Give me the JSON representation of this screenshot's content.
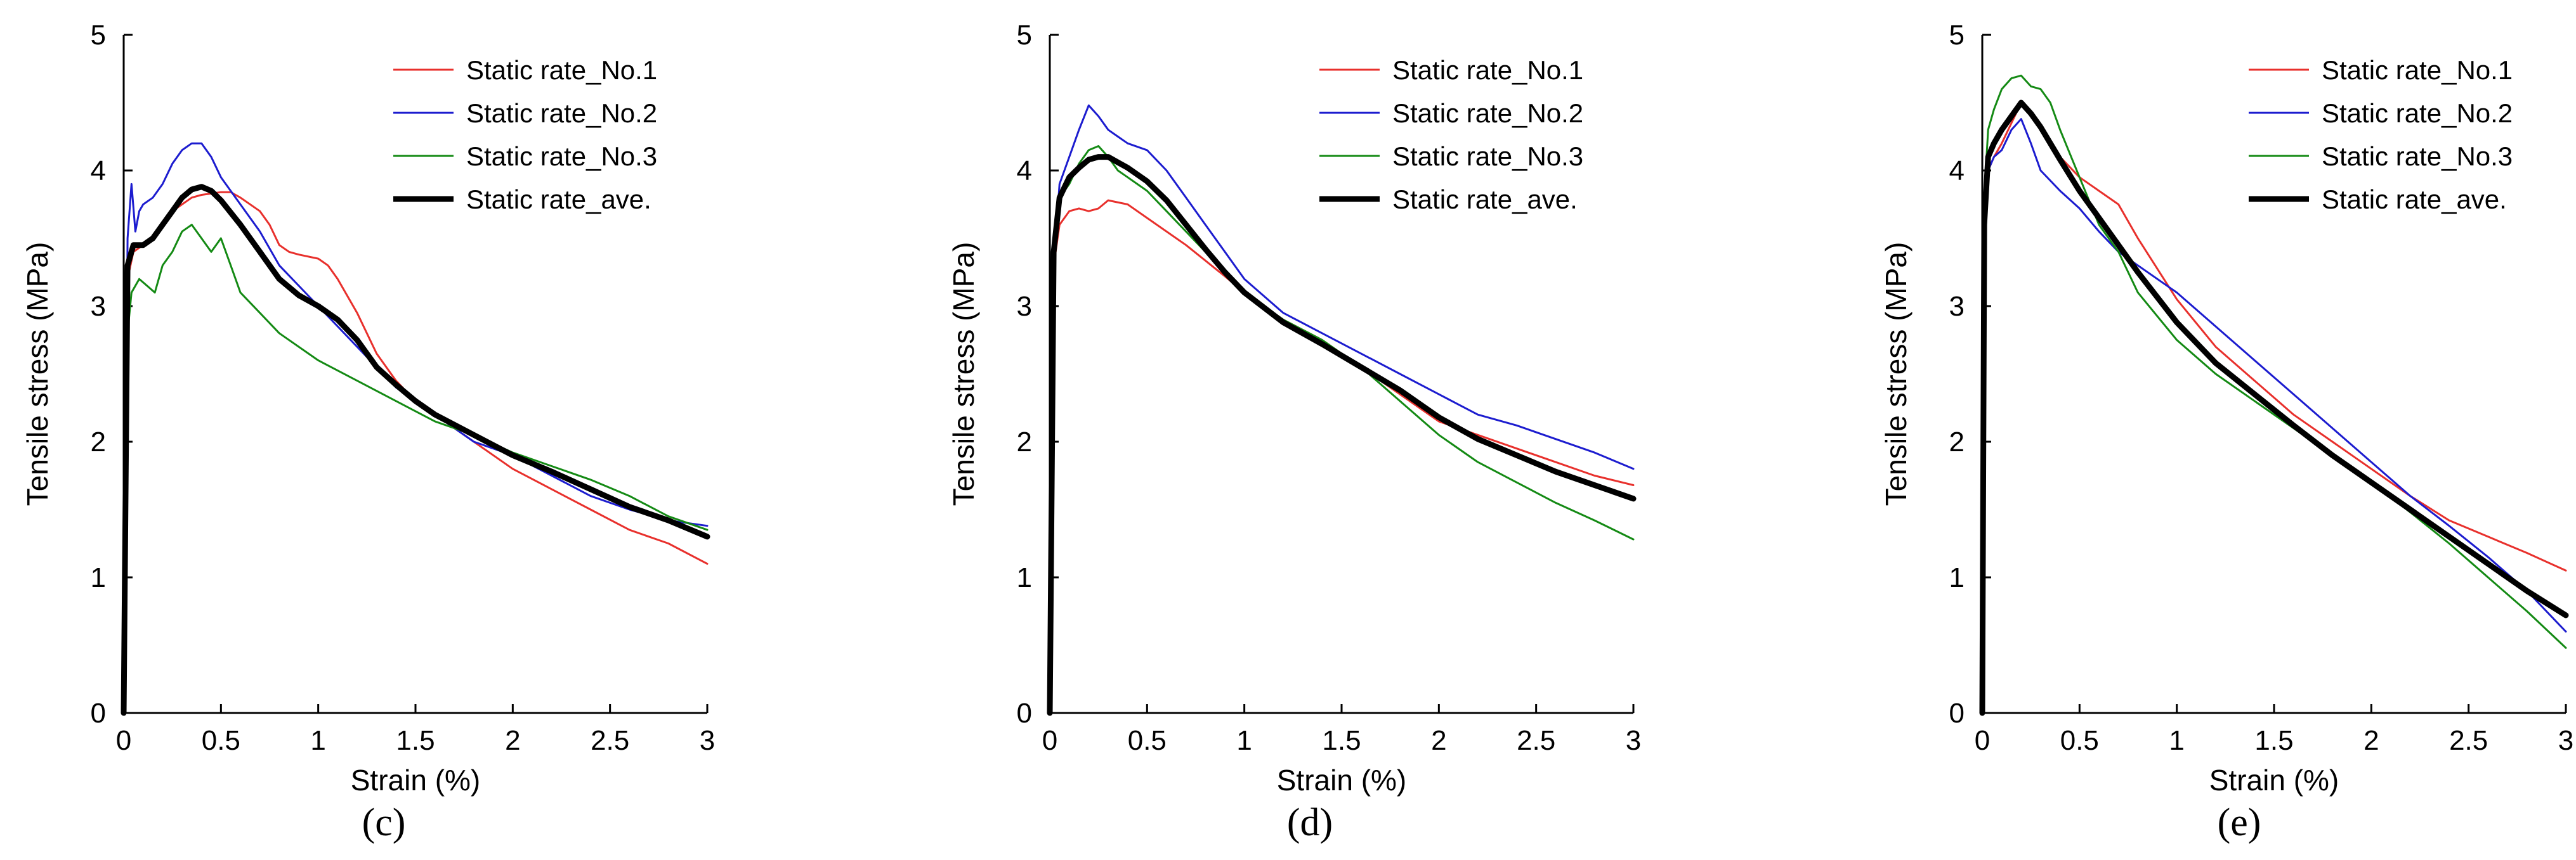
{
  "figure": {
    "series_styles": [
      {
        "key": "no1",
        "color": "#e8302c",
        "weight": "thin"
      },
      {
        "key": "no2",
        "color": "#1c1ccf",
        "weight": "thin"
      },
      {
        "key": "no3",
        "color": "#148a14",
        "weight": "thin"
      },
      {
        "key": "ave",
        "color": "#000000",
        "weight": "thick"
      }
    ]
  },
  "chart_data": [
    {
      "type": "line",
      "panel_label": "(c)",
      "xlabel": "Strain (%)",
      "ylabel": "Tensile stress (MPa)",
      "xlim": [
        0,
        3
      ],
      "ylim": [
        0,
        5
      ],
      "xticks": [
        "0",
        "0.5",
        "1",
        "1.5",
        "2",
        "2.5",
        "3"
      ],
      "yticks": [
        "0",
        "1",
        "2",
        "3",
        "4",
        "5"
      ],
      "grid": false,
      "legend": "top-right",
      "series": [
        {
          "name": "Static rate_No.1",
          "key": "no1",
          "x": [
            0,
            0.02,
            0.05,
            0.1,
            0.15,
            0.2,
            0.25,
            0.3,
            0.35,
            0.4,
            0.45,
            0.5,
            0.55,
            0.6,
            0.7,
            0.75,
            0.8,
            0.85,
            0.9,
            1.0,
            1.05,
            1.1,
            1.2,
            1.3,
            1.4,
            1.5,
            1.6,
            1.8,
            2.0,
            2.2,
            2.4,
            2.6,
            2.8,
            3.0
          ],
          "y": [
            0,
            3.2,
            3.4,
            3.45,
            3.5,
            3.6,
            3.7,
            3.75,
            3.8,
            3.82,
            3.83,
            3.84,
            3.84,
            3.8,
            3.7,
            3.6,
            3.45,
            3.4,
            3.38,
            3.35,
            3.3,
            3.2,
            2.95,
            2.65,
            2.45,
            2.3,
            2.2,
            2.0,
            1.8,
            1.65,
            1.5,
            1.35,
            1.25,
            1.1
          ]
        },
        {
          "name": "Static rate_No.2",
          "key": "no2",
          "x": [
            0,
            0.02,
            0.04,
            0.06,
            0.08,
            0.1,
            0.15,
            0.2,
            0.25,
            0.3,
            0.35,
            0.4,
            0.45,
            0.5,
            0.6,
            0.7,
            0.8,
            0.9,
            1.0,
            1.2,
            1.4,
            1.6,
            1.8,
            2.0,
            2.2,
            2.4,
            2.6,
            2.8,
            3.0
          ],
          "y": [
            0,
            3.5,
            3.9,
            3.55,
            3.7,
            3.75,
            3.8,
            3.9,
            4.05,
            4.15,
            4.2,
            4.2,
            4.1,
            3.95,
            3.75,
            3.55,
            3.3,
            3.15,
            3.0,
            2.7,
            2.4,
            2.2,
            2.0,
            1.9,
            1.75,
            1.6,
            1.5,
            1.42,
            1.38
          ]
        },
        {
          "name": "Static rate_No.3",
          "key": "no3",
          "x": [
            0,
            0.02,
            0.04,
            0.08,
            0.12,
            0.16,
            0.2,
            0.25,
            0.3,
            0.35,
            0.4,
            0.45,
            0.5,
            0.55,
            0.6,
            0.7,
            0.8,
            1.0,
            1.2,
            1.4,
            1.6,
            1.8,
            2.0,
            2.2,
            2.4,
            2.6,
            2.8,
            3.0
          ],
          "y": [
            0,
            2.8,
            3.1,
            3.2,
            3.15,
            3.1,
            3.3,
            3.4,
            3.55,
            3.6,
            3.5,
            3.4,
            3.5,
            3.3,
            3.1,
            2.95,
            2.8,
            2.6,
            2.45,
            2.3,
            2.15,
            2.05,
            1.92,
            1.82,
            1.72,
            1.6,
            1.45,
            1.35
          ]
        },
        {
          "name": "Static rate_ave.",
          "key": "ave",
          "x": [
            0,
            0.02,
            0.05,
            0.1,
            0.15,
            0.2,
            0.25,
            0.3,
            0.35,
            0.4,
            0.45,
            0.5,
            0.6,
            0.7,
            0.8,
            0.9,
            1.0,
            1.1,
            1.2,
            1.3,
            1.4,
            1.5,
            1.6,
            1.8,
            2.0,
            2.2,
            2.4,
            2.6,
            2.8,
            3.0
          ],
          "y": [
            0,
            3.3,
            3.45,
            3.45,
            3.5,
            3.6,
            3.7,
            3.8,
            3.86,
            3.88,
            3.85,
            3.78,
            3.6,
            3.4,
            3.2,
            3.08,
            3.0,
            2.9,
            2.75,
            2.55,
            2.42,
            2.3,
            2.2,
            2.05,
            1.9,
            1.78,
            1.65,
            1.52,
            1.42,
            1.3
          ]
        }
      ]
    },
    {
      "type": "line",
      "panel_label": "(d)",
      "xlabel": "Strain (%)",
      "ylabel": "Tensile stress (MPa)",
      "xlim": [
        0,
        3
      ],
      "ylim": [
        0,
        5
      ],
      "xticks": [
        "0",
        "0.5",
        "1",
        "1.5",
        "2",
        "2.5",
        "3"
      ],
      "yticks": [
        "0",
        "1",
        "2",
        "3",
        "4",
        "5"
      ],
      "grid": false,
      "legend": "top-right",
      "series": [
        {
          "name": "Static rate_No.1",
          "key": "no1",
          "x": [
            0,
            0.02,
            0.05,
            0.1,
            0.15,
            0.2,
            0.25,
            0.3,
            0.4,
            0.5,
            0.7,
            0.9,
            1.0,
            1.2,
            1.4,
            1.6,
            1.8,
            2.0,
            2.2,
            2.4,
            2.6,
            2.8,
            3.0
          ],
          "y": [
            0,
            3.3,
            3.6,
            3.7,
            3.72,
            3.7,
            3.72,
            3.78,
            3.75,
            3.65,
            3.45,
            3.22,
            3.1,
            2.9,
            2.75,
            2.55,
            2.35,
            2.15,
            2.05,
            1.95,
            1.85,
            1.75,
            1.68
          ]
        },
        {
          "name": "Static rate_No.2",
          "key": "no2",
          "x": [
            0,
            0.02,
            0.05,
            0.1,
            0.15,
            0.2,
            0.25,
            0.3,
            0.35,
            0.4,
            0.5,
            0.6,
            0.7,
            0.8,
            0.9,
            1.0,
            1.2,
            1.4,
            1.6,
            1.8,
            2.0,
            2.2,
            2.4,
            2.6,
            2.8,
            3.0
          ],
          "y": [
            0,
            3.3,
            3.9,
            4.1,
            4.3,
            4.48,
            4.4,
            4.3,
            4.25,
            4.2,
            4.15,
            4.0,
            3.8,
            3.6,
            3.4,
            3.2,
            2.95,
            2.8,
            2.65,
            2.5,
            2.35,
            2.2,
            2.12,
            2.02,
            1.92,
            1.8
          ]
        },
        {
          "name": "Static rate_No.3",
          "key": "no3",
          "x": [
            0,
            0.02,
            0.05,
            0.1,
            0.15,
            0.2,
            0.25,
            0.3,
            0.35,
            0.4,
            0.5,
            0.6,
            0.8,
            1.0,
            1.2,
            1.4,
            1.6,
            1.8,
            2.0,
            2.2,
            2.4,
            2.6,
            2.8,
            3.0
          ],
          "y": [
            0,
            3.5,
            3.8,
            3.9,
            4.05,
            4.15,
            4.18,
            4.1,
            4.0,
            3.95,
            3.85,
            3.7,
            3.4,
            3.1,
            2.9,
            2.75,
            2.55,
            2.3,
            2.05,
            1.85,
            1.7,
            1.55,
            1.42,
            1.28
          ]
        },
        {
          "name": "Static rate_ave.",
          "key": "ave",
          "x": [
            0,
            0.02,
            0.05,
            0.1,
            0.15,
            0.2,
            0.25,
            0.3,
            0.35,
            0.4,
            0.5,
            0.6,
            0.7,
            0.8,
            0.9,
            1.0,
            1.2,
            1.4,
            1.6,
            1.8,
            2.0,
            2.2,
            2.4,
            2.6,
            2.8,
            3.0
          ],
          "y": [
            0,
            3.4,
            3.8,
            3.95,
            4.02,
            4.08,
            4.1,
            4.1,
            4.06,
            4.02,
            3.92,
            3.78,
            3.6,
            3.42,
            3.25,
            3.1,
            2.88,
            2.72,
            2.55,
            2.38,
            2.18,
            2.02,
            1.9,
            1.78,
            1.68,
            1.58
          ]
        }
      ]
    },
    {
      "type": "line",
      "panel_label": "(e)",
      "xlabel": "Strain (%)",
      "ylabel": "Tensile stress (MPa)",
      "xlim": [
        0,
        3
      ],
      "ylim": [
        0,
        5
      ],
      "xticks": [
        "0",
        "0.5",
        "1",
        "1.5",
        "2",
        "2.5",
        "3"
      ],
      "yticks": [
        "0",
        "1",
        "2",
        "3",
        "4",
        "5"
      ],
      "grid": false,
      "legend": "top-right",
      "series": [
        {
          "name": "Static rate_No.1",
          "key": "no1",
          "x": [
            0,
            0.01,
            0.03,
            0.06,
            0.1,
            0.15,
            0.2,
            0.25,
            0.3,
            0.4,
            0.5,
            0.6,
            0.7,
            0.8,
            1.0,
            1.2,
            1.4,
            1.6,
            1.8,
            2.0,
            2.2,
            2.4,
            2.6,
            2.8,
            3.0
          ],
          "y": [
            0,
            3.5,
            4.0,
            4.1,
            4.2,
            4.35,
            4.5,
            4.4,
            4.3,
            4.1,
            3.95,
            3.85,
            3.75,
            3.5,
            3.05,
            2.7,
            2.45,
            2.2,
            2.0,
            1.8,
            1.6,
            1.42,
            1.3,
            1.18,
            1.05
          ]
        },
        {
          "name": "Static rate_No.2",
          "key": "no2",
          "x": [
            0,
            0.01,
            0.03,
            0.06,
            0.1,
            0.15,
            0.2,
            0.25,
            0.3,
            0.4,
            0.5,
            0.6,
            0.7,
            0.8,
            1.0,
            1.2,
            1.4,
            1.6,
            1.8,
            2.0,
            2.2,
            2.4,
            2.6,
            2.8,
            3.0
          ],
          "y": [
            0,
            3.6,
            4.0,
            4.1,
            4.15,
            4.3,
            4.38,
            4.2,
            4.0,
            3.85,
            3.72,
            3.55,
            3.4,
            3.3,
            3.1,
            2.85,
            2.6,
            2.35,
            2.1,
            1.85,
            1.6,
            1.38,
            1.15,
            0.9,
            0.6
          ]
        },
        {
          "name": "Static rate_No.3",
          "key": "no3",
          "x": [
            0,
            0.01,
            0.03,
            0.06,
            0.1,
            0.15,
            0.2,
            0.25,
            0.3,
            0.35,
            0.4,
            0.5,
            0.6,
            0.7,
            0.8,
            1.0,
            1.2,
            1.4,
            1.6,
            1.8,
            2.0,
            2.2,
            2.4,
            2.6,
            2.8,
            3.0
          ],
          "y": [
            0,
            3.8,
            4.3,
            4.45,
            4.6,
            4.68,
            4.7,
            4.62,
            4.6,
            4.5,
            4.3,
            3.95,
            3.6,
            3.4,
            3.1,
            2.75,
            2.5,
            2.3,
            2.1,
            1.9,
            1.7,
            1.48,
            1.25,
            1.0,
            0.75,
            0.48
          ]
        },
        {
          "name": "Static rate_ave.",
          "key": "ave",
          "x": [
            0,
            0.01,
            0.03,
            0.06,
            0.1,
            0.15,
            0.2,
            0.25,
            0.3,
            0.35,
            0.4,
            0.5,
            0.6,
            0.7,
            0.8,
            1.0,
            1.2,
            1.4,
            1.6,
            1.8,
            2.0,
            2.2,
            2.4,
            2.6,
            2.8,
            3.0
          ],
          "y": [
            0,
            3.6,
            4.1,
            4.2,
            4.3,
            4.4,
            4.5,
            4.42,
            4.32,
            4.2,
            4.08,
            3.85,
            3.65,
            3.45,
            3.25,
            2.88,
            2.58,
            2.35,
            2.12,
            1.9,
            1.7,
            1.5,
            1.3,
            1.1,
            0.9,
            0.72
          ]
        }
      ]
    }
  ]
}
